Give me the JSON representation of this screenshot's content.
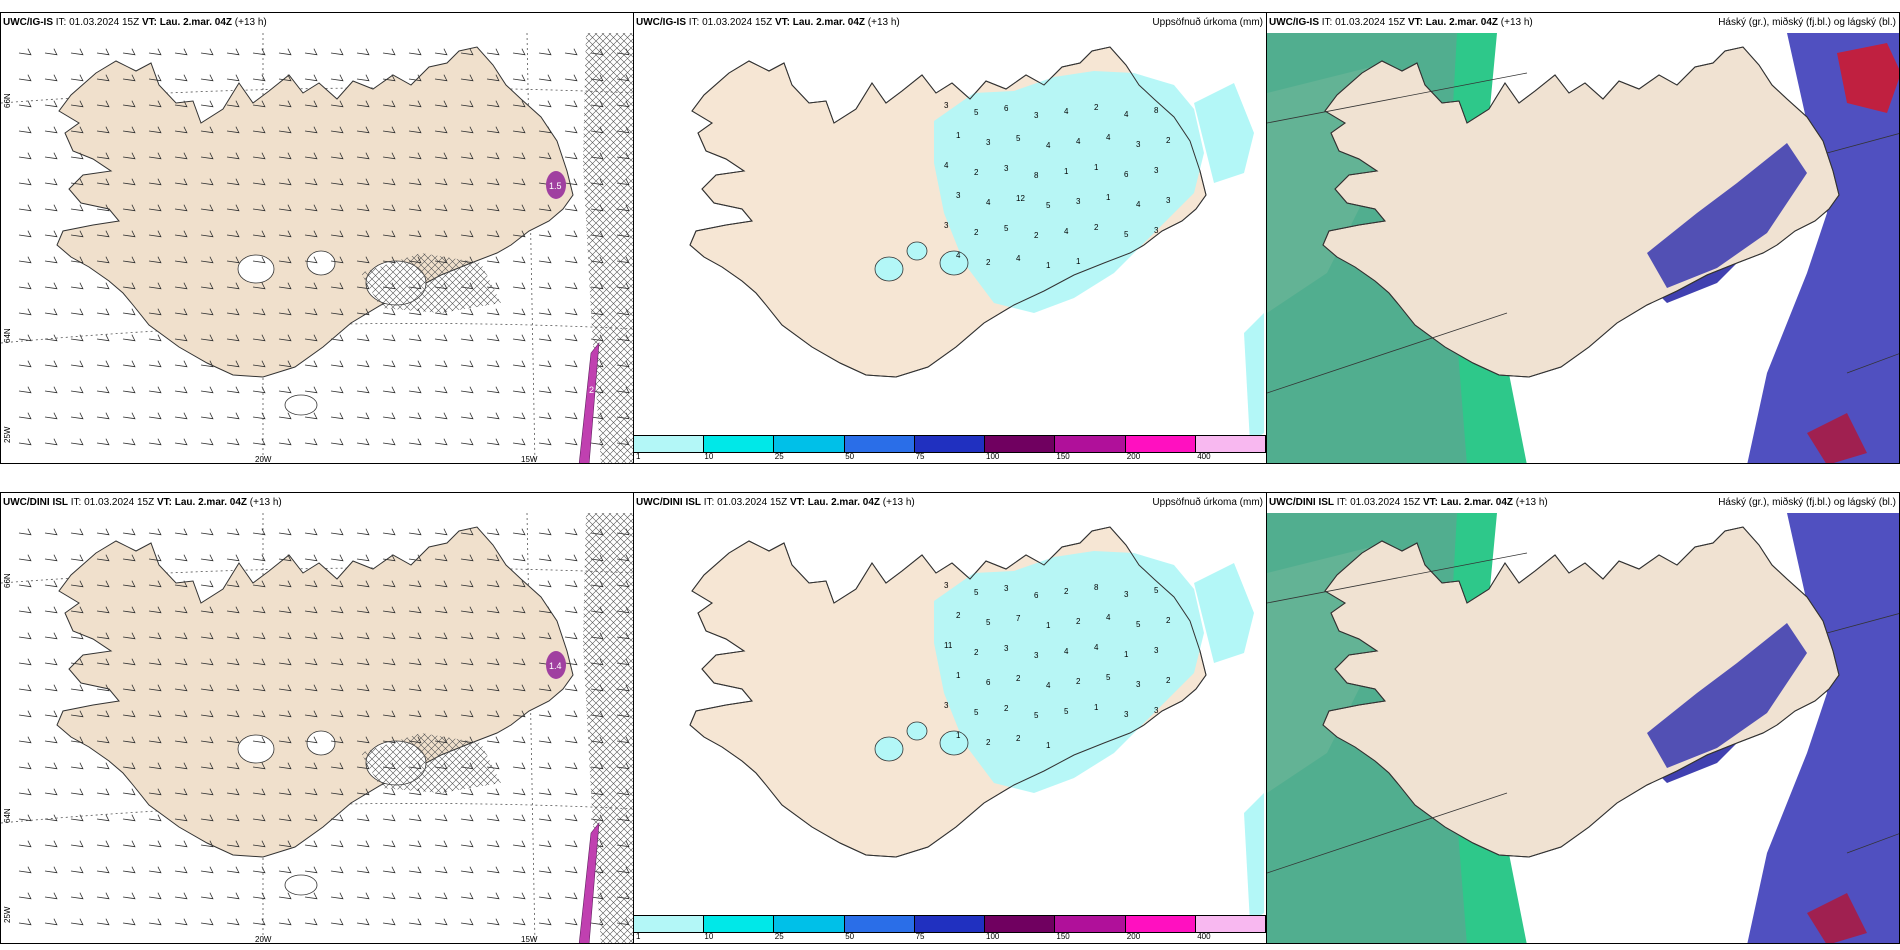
{
  "time": {
    "it_label": "IT:",
    "it": "01.03.2024 15Z",
    "vt_label": "VT:",
    "vt": "Lau. 2.mar. 04Z",
    "offset": "(+13 h)"
  },
  "rows": [
    {
      "model": "UWC/IG-IS"
    },
    {
      "model": "UWC/DINI ISL"
    }
  ],
  "titles": {
    "precip": "Uppsöfnuð úrkoma (mm)",
    "cloud": "Háský (gr.), miðský (fj.bl.) og lágský (bl.)"
  },
  "axes": {
    "lon": [
      "20W",
      "15W"
    ],
    "lat": [
      "66N",
      "64N"
    ],
    "lat_edge": "25W"
  },
  "colorbar": {
    "ticks": [
      "1",
      "10",
      "25",
      "50",
      "75",
      "100",
      "150",
      "200",
      "400"
    ],
    "colors": [
      "#b3f7f7",
      "#00e8e8",
      "#00c0e8",
      "#2a6ee8",
      "#2030c0",
      "#700060",
      "#b0109a",
      "#ff10c0",
      "#f8b8f0"
    ]
  },
  "precip_labels_row1": [
    "3",
    "5",
    "6",
    "3",
    "4",
    "2",
    "4",
    "8",
    "1",
    "3",
    "5",
    "4",
    "4",
    "4",
    "3",
    "2",
    "4",
    "2",
    "3",
    "8",
    "1",
    "1",
    "6",
    "3",
    "3",
    "4",
    "12",
    "5",
    "3",
    "1",
    "4",
    "3",
    "3",
    "2",
    "5",
    "2",
    "4",
    "2",
    "5",
    "3",
    "4",
    "2",
    "4",
    "1",
    "1"
  ],
  "precip_labels_row2": [
    "3",
    "5",
    "3",
    "6",
    "2",
    "8",
    "3",
    "5",
    "2",
    "5",
    "7",
    "1",
    "2",
    "4",
    "5",
    "2",
    "11",
    "2",
    "3",
    "3",
    "4",
    "4",
    "1",
    "3",
    "1",
    "6",
    "2",
    "4",
    "2",
    "5",
    "3",
    "2",
    "3",
    "5",
    "2",
    "5",
    "5",
    "1",
    "3",
    "3",
    "1",
    "2",
    "2",
    "1"
  ],
  "wind_markers_row1": [
    "1.5",
    "2"
  ],
  "wind_markers_row2": [
    "1.4"
  ]
}
